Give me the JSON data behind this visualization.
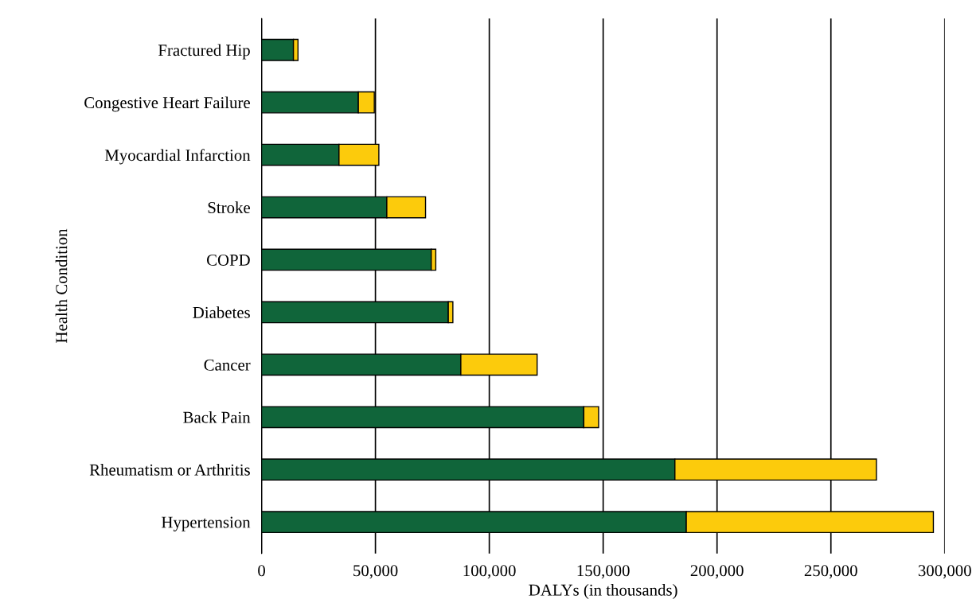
{
  "chart_data": {
    "type": "bar",
    "orientation": "horizontal",
    "stacked": true,
    "xlabel": "DALYs (in thousands)",
    "ylabel": "Health Condition",
    "categories": [
      "Fractured Hip",
      "Congestive Heart Failure",
      "Myocardial Infarction",
      "Stroke",
      "COPD",
      "Diabetes",
      "Cancer",
      "Back Pain",
      "Rheumatism or Arthritis",
      "Hypertension"
    ],
    "series": [
      {
        "color": "#10653a",
        "values": [
          14000,
          42500,
          34000,
          55000,
          74500,
          82000,
          87500,
          141500,
          181500,
          186500
        ]
      },
      {
        "color": "#fccb0c",
        "values": [
          2000,
          7000,
          17500,
          17000,
          2000,
          2000,
          33500,
          6500,
          88500,
          108500
        ]
      }
    ],
    "xlim": [
      0,
      300000
    ],
    "xticks": [
      {
        "value": 0,
        "label": "0"
      },
      {
        "value": 50000,
        "label": "50,000"
      },
      {
        "value": 100000,
        "label": "100,000"
      },
      {
        "value": 150000,
        "label": "150,000"
      },
      {
        "value": 200000,
        "label": "200,000"
      },
      {
        "value": 250000,
        "label": "250,000"
      },
      {
        "value": 300000,
        "label": "300,000"
      }
    ],
    "grid": "x",
    "legend": false
  }
}
